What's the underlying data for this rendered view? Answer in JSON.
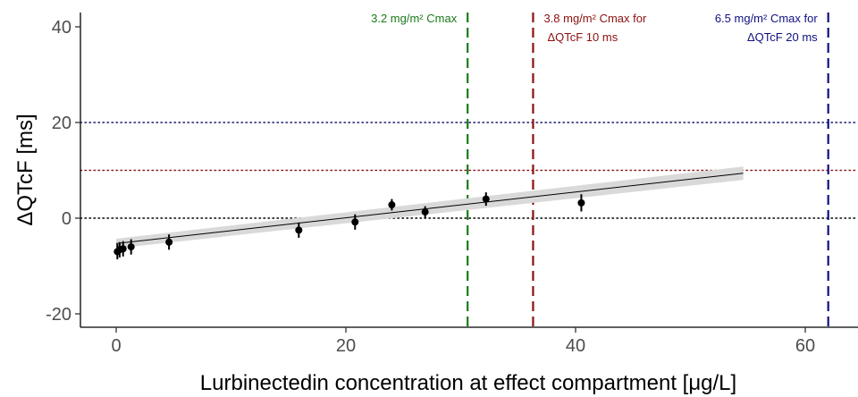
{
  "chart_data": {
    "type": "scatter",
    "xlabel": "Lurbinectedin concentration at effect compartment [μg/L]",
    "ylabel": "ΔQTcF [ms]",
    "xlim": [
      -3,
      63
    ],
    "ylim": [
      -23,
      43
    ],
    "x_ticks": [
      0,
      20,
      40,
      60
    ],
    "y_ticks": [
      -20,
      0,
      20,
      40
    ],
    "grid": false,
    "points": [
      {
        "x": 0.1,
        "y": -7.0,
        "lo": -8.6,
        "hi": -5.4
      },
      {
        "x": 0.3,
        "y": -6.6,
        "lo": -8.2,
        "hi": -5.0
      },
      {
        "x": 0.6,
        "y": -6.4,
        "lo": -8.0,
        "hi": -4.8
      },
      {
        "x": 1.3,
        "y": -6.0,
        "lo": -7.6,
        "hi": -4.4
      },
      {
        "x": 4.6,
        "y": -5.0,
        "lo": -6.6,
        "hi": -3.4
      },
      {
        "x": 15.9,
        "y": -2.5,
        "lo": -4.1,
        "hi": -0.9
      },
      {
        "x": 20.8,
        "y": -0.8,
        "lo": -2.4,
        "hi": 0.8
      },
      {
        "x": 24.0,
        "y": 2.8,
        "lo": 1.6,
        "hi": 4.0
      },
      {
        "x": 26.9,
        "y": 1.3,
        "lo": 0.1,
        "hi": 2.5
      },
      {
        "x": 32.2,
        "y": 4.0,
        "lo": 2.6,
        "hi": 5.4
      },
      {
        "x": 40.5,
        "y": 3.2,
        "lo": 1.4,
        "hi": 5.0
      }
    ],
    "regression": {
      "x": [
        0,
        54.6
      ],
      "y": [
        -5.3,
        9.4
      ],
      "ci_halfwidth": 1.0
    },
    "hlines": [
      {
        "y": 20,
        "color": "#191970",
        "style": "dotted"
      },
      {
        "y": 10,
        "color": "#8b1a1a",
        "style": "dotted"
      },
      {
        "y": 0,
        "color": "#000000",
        "style": "dotted"
      }
    ],
    "vlines": [
      {
        "x": 30.6,
        "color": "#1a7a1a",
        "lines": [
          "3.2 mg/m² Cmax"
        ],
        "align": "end"
      },
      {
        "x": 36.3,
        "color": "#8b1010",
        "lines": [
          "3.8 mg/m² Cmax for",
          "ΔQTcF 10 ms"
        ],
        "align": "start"
      },
      {
        "x": 62.0,
        "color": "#101080",
        "lines": [
          "6.5 mg/m² Cmax for",
          "ΔQTcF 20 ms"
        ],
        "align": "end"
      }
    ],
    "colors": {
      "points": "#000000",
      "ci_band": "#d9d9d9",
      "axis": "#000000"
    }
  }
}
